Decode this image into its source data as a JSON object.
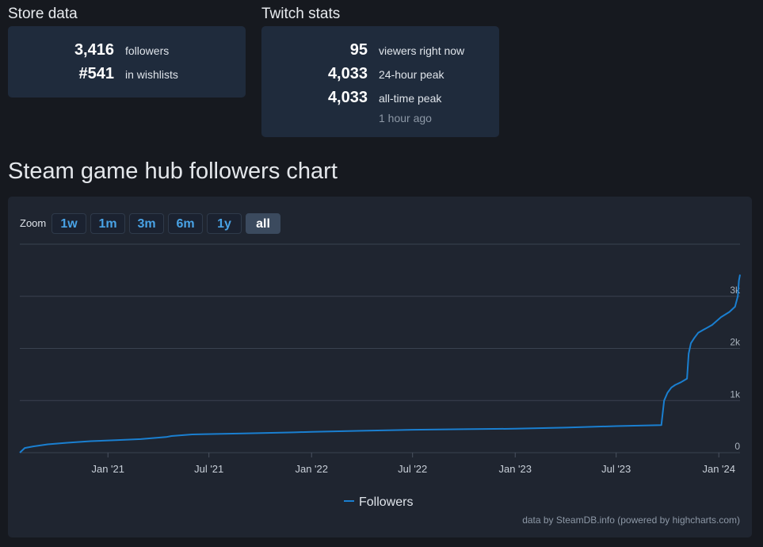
{
  "store": {
    "title": "Store data",
    "rows": [
      {
        "value": "3,416",
        "label": "followers"
      },
      {
        "value": "#541",
        "label": "in wishlists"
      }
    ]
  },
  "twitch": {
    "title": "Twitch stats",
    "rows": [
      {
        "value": "95",
        "label": "viewers right now"
      },
      {
        "value": "4,033",
        "label": "24-hour peak"
      },
      {
        "value": "4,033",
        "label": "all-time peak"
      }
    ],
    "updated": "1 hour ago"
  },
  "chart_heading": "Steam game hub followers chart",
  "zoom": {
    "label": "Zoom",
    "buttons": [
      "1w",
      "1m",
      "3m",
      "6m",
      "1y",
      "all"
    ],
    "active": "all"
  },
  "credit": "data by SteamDB.info (powered by highcharts.com)",
  "colors": {
    "line": "#1a7fd0",
    "accent": "#49a3e6",
    "panel": "#1f2530"
  },
  "chart_data": {
    "type": "line",
    "title": "",
    "xlabel": "",
    "ylabel": "",
    "x_tick_labels": [
      "Jan '21",
      "Jul '21",
      "Jan '22",
      "Jul '22",
      "Jan '23",
      "Jul '23",
      "Jan '24"
    ],
    "y_tick_labels": [
      "0",
      "1k",
      "2k",
      "3k"
    ],
    "ylim": [
      0,
      4000
    ],
    "xlim": [
      "2020-07-27",
      "2024-02-08"
    ],
    "grid": true,
    "legend": "bottom-center",
    "series": [
      {
        "name": "Followers",
        "x": [
          "2020-07-27",
          "2020-08-05",
          "2020-08-20",
          "2020-09-15",
          "2020-10-20",
          "2020-12-01",
          "2021-01-15",
          "2021-03-01",
          "2021-04-15",
          "2021-04-25",
          "2021-06-01",
          "2021-09-01",
          "2021-12-01",
          "2022-01-01",
          "2022-04-01",
          "2022-07-01",
          "2022-10-01",
          "2023-01-01",
          "2023-04-01",
          "2023-07-01",
          "2023-09-20",
          "2023-09-25",
          "2023-10-01",
          "2023-10-08",
          "2023-10-15",
          "2023-10-25",
          "2023-11-05",
          "2023-11-08",
          "2023-11-12",
          "2023-11-18",
          "2023-11-25",
          "2023-12-05",
          "2023-12-20",
          "2024-01-05",
          "2024-01-20",
          "2024-01-30",
          "2024-02-04",
          "2024-02-06",
          "2024-02-08"
        ],
        "values": [
          0,
          90,
          120,
          160,
          190,
          220,
          240,
          260,
          300,
          320,
          350,
          370,
          390,
          400,
          420,
          440,
          450,
          460,
          480,
          510,
          530,
          1000,
          1150,
          1250,
          1300,
          1350,
          1420,
          1900,
          2100,
          2200,
          2300,
          2360,
          2450,
          2600,
          2700,
          2800,
          3000,
          3300,
          3416
        ]
      }
    ]
  }
}
